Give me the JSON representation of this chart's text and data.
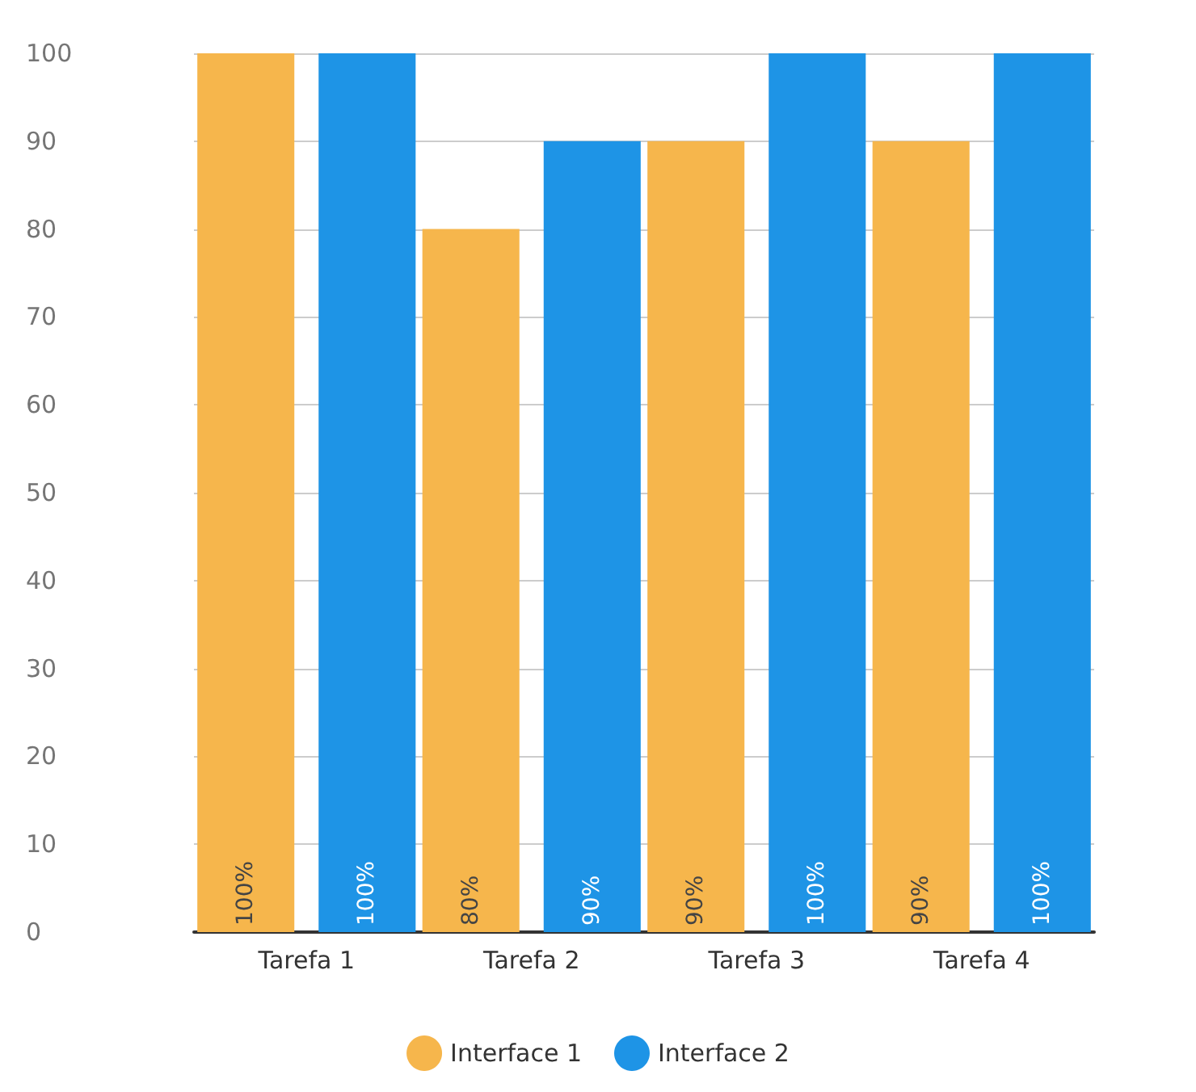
{
  "chart_data": {
    "type": "bar",
    "categories": [
      "Tarefa 1",
      "Tarefa 2",
      "Tarefa 3",
      "Tarefa 4"
    ],
    "series": [
      {
        "name": "Interface 1",
        "color": "#f6b64c",
        "values": [
          100,
          80,
          90,
          90
        ],
        "value_labels": [
          "100%",
          "80%",
          "90%",
          "90%"
        ]
      },
      {
        "name": "Interface 2",
        "color": "#1e94e6",
        "values": [
          100,
          90,
          100,
          100
        ],
        "value_labels": [
          "100%",
          "90%",
          "100%",
          "100%"
        ]
      }
    ],
    "ylim": [
      0,
      100
    ],
    "yticks": [
      0,
      10,
      20,
      30,
      40,
      50,
      60,
      70,
      80,
      90,
      100
    ],
    "grid": "y",
    "legend": "bottom"
  }
}
